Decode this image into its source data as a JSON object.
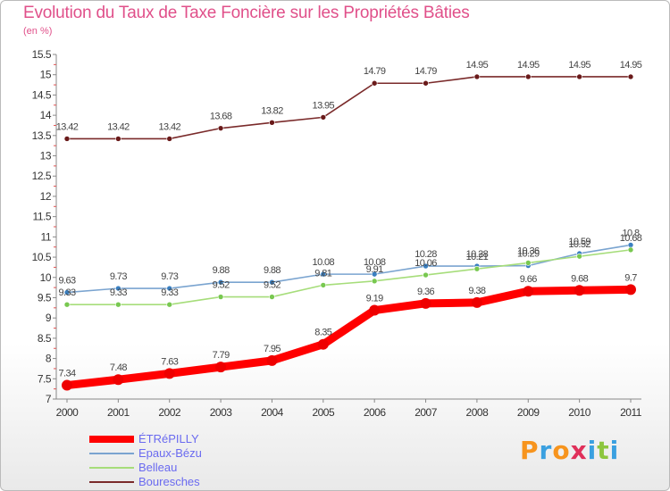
{
  "title": "Evolution du Taux de Taxe Foncière sur les Propriétés Bâties",
  "subtitle": "(en %)",
  "logo": {
    "text": "Proxiti",
    "letters": [
      {
        "ch": "P",
        "color": "#f7941d"
      },
      {
        "ch": "r",
        "color": "#3aa0e0"
      },
      {
        "ch": "o",
        "color": "#f7941d"
      },
      {
        "ch": "x",
        "color": "#e0305a"
      },
      {
        "ch": "i",
        "color": "#3aa0e0"
      },
      {
        "ch": "t",
        "color": "#8dc63f"
      },
      {
        "ch": "i",
        "color": "#3aa0e0"
      }
    ]
  },
  "chart_data": {
    "type": "line",
    "title": "Evolution du Taux de Taxe Foncière sur les Propriétés Bâties",
    "ylabel": "(en %)",
    "xlabel": "",
    "x": [
      "2000",
      "2001",
      "2002",
      "2003",
      "2004",
      "2005",
      "2006",
      "2007",
      "2008",
      "2009",
      "2010",
      "2011"
    ],
    "ylim": [
      7,
      15.5
    ],
    "yticks": [
      "7",
      "7.5",
      "8",
      "8.5",
      "9",
      "9.5",
      "10",
      "10.5",
      "11",
      "11.5",
      "12",
      "12.5",
      "13",
      "13.5",
      "14",
      "14.5",
      "15",
      "15.5"
    ],
    "grid": false,
    "legend_position": "bottom-left",
    "series": [
      {
        "name": "ÉTRéPILLY",
        "color": "#ff0000",
        "marker_color": "#ee0000",
        "width": "thick",
        "values": [
          7.34,
          7.48,
          7.63,
          7.79,
          7.95,
          8.35,
          9.19,
          9.36,
          9.38,
          9.66,
          9.68,
          9.7
        ],
        "labels": [
          "7.34",
          "7.48",
          "7.63",
          "7.79",
          "7.95",
          "8.35",
          "9.19",
          "9.36",
          "9.38",
          "9.66",
          "9.68",
          "9.7"
        ]
      },
      {
        "name": "Epaux-Bézu",
        "color": "#7aa4d0",
        "marker_color": "#3a7fc0",
        "width": "thin",
        "values": [
          9.63,
          9.73,
          9.73,
          9.88,
          9.88,
          10.08,
          10.08,
          10.28,
          10.28,
          10.29,
          10.59,
          10.8
        ],
        "labels": [
          "9.63",
          "9.73",
          "9.73",
          "9.88",
          "9.88",
          "10.08",
          "10.08",
          "10.28",
          "10.28",
          "10.29",
          "10.59",
          "10.8"
        ]
      },
      {
        "name": "Belleau",
        "color": "#a6dd7a",
        "marker_color": "#78c850",
        "width": "thin",
        "values": [
          9.33,
          9.33,
          9.33,
          9.52,
          9.52,
          9.81,
          9.91,
          10.06,
          10.21,
          10.36,
          10.52,
          10.68
        ],
        "labels": [
          "9.33",
          "9.33",
          "9.33",
          "9.52",
          "9.52",
          "9.81",
          "9.91",
          "10.06",
          "10.21",
          "10.36",
          "10.52",
          "10.68"
        ]
      },
      {
        "name": "Bouresches",
        "color": "#7a2a2a",
        "marker_color": "#6a1a1a",
        "width": "thin",
        "values": [
          13.42,
          13.42,
          13.42,
          13.68,
          13.82,
          13.95,
          14.79,
          14.79,
          14.95,
          14.95,
          14.95,
          14.95
        ],
        "labels": [
          "13.42",
          "13.42",
          "13.42",
          "13.68",
          "13.82",
          "13.95",
          "14.79",
          "14.79",
          "14.95",
          "14.95",
          "14.95",
          "14.95"
        ]
      }
    ]
  }
}
